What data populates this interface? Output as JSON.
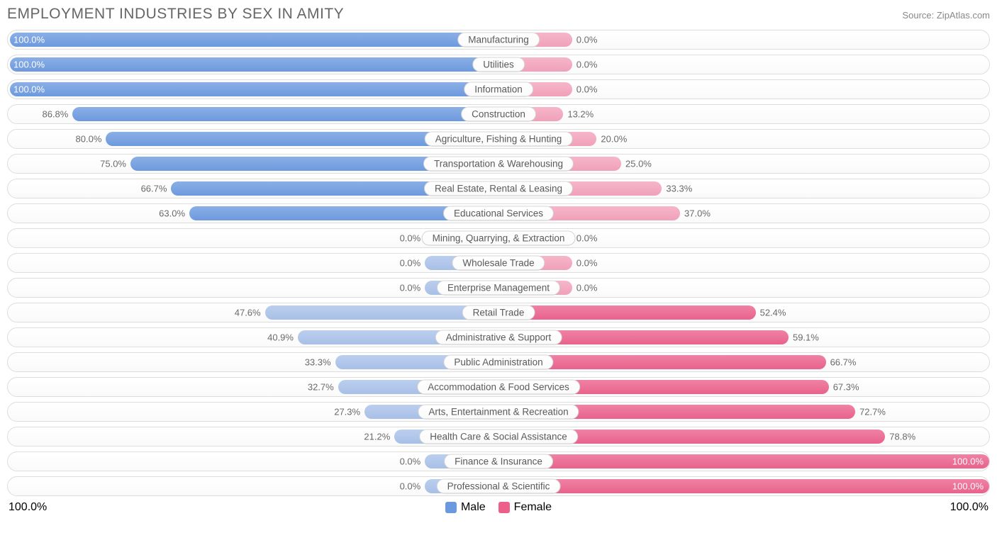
{
  "title": "EMPLOYMENT INDUSTRIES BY SEX IN AMITY",
  "source_label": "Source: ZipAtlas.com",
  "colors": {
    "male_full": "#6a99e0",
    "male_muted": "#a8c1ea",
    "female_full": "#ec5f8b",
    "female_muted": "#f4a1bb",
    "row_border": "#dddddd",
    "text": "#555555",
    "title_color": "#666666",
    "bg": "#ffffff"
  },
  "legend": {
    "male": "Male",
    "female": "Female"
  },
  "axis": {
    "left": "100.0%",
    "right": "100.0%"
  },
  "short_bar_pct": 15,
  "rows": [
    {
      "label": "Manufacturing",
      "male": 100.0,
      "female": 0.0,
      "female_muted": true
    },
    {
      "label": "Utilities",
      "male": 100.0,
      "female": 0.0,
      "female_muted": true
    },
    {
      "label": "Information",
      "male": 100.0,
      "female": 0.0,
      "female_muted": true
    },
    {
      "label": "Construction",
      "male": 86.8,
      "female": 13.2,
      "female_muted": true
    },
    {
      "label": "Agriculture, Fishing & Hunting",
      "male": 80.0,
      "female": 20.0,
      "female_muted": true
    },
    {
      "label": "Transportation & Warehousing",
      "male": 75.0,
      "female": 25.0,
      "female_muted": true
    },
    {
      "label": "Real Estate, Rental & Leasing",
      "male": 66.7,
      "female": 33.3,
      "female_muted": true
    },
    {
      "label": "Educational Services",
      "male": 63.0,
      "female": 37.0,
      "female_muted": true
    },
    {
      "label": "Mining, Quarrying, & Extraction",
      "male": 0.0,
      "female": 0.0,
      "male_muted": true,
      "female_muted": true
    },
    {
      "label": "Wholesale Trade",
      "male": 0.0,
      "female": 0.0,
      "male_muted": true,
      "female_muted": true
    },
    {
      "label": "Enterprise Management",
      "male": 0.0,
      "female": 0.0,
      "male_muted": true,
      "female_muted": true
    },
    {
      "label": "Retail Trade",
      "male": 47.6,
      "female": 52.4,
      "male_muted": true
    },
    {
      "label": "Administrative & Support",
      "male": 40.9,
      "female": 59.1,
      "male_muted": true
    },
    {
      "label": "Public Administration",
      "male": 33.3,
      "female": 66.7,
      "male_muted": true
    },
    {
      "label": "Accommodation & Food Services",
      "male": 32.7,
      "female": 67.3,
      "male_muted": true
    },
    {
      "label": "Arts, Entertainment & Recreation",
      "male": 27.3,
      "female": 72.7,
      "male_muted": true
    },
    {
      "label": "Health Care & Social Assistance",
      "male": 21.2,
      "female": 78.8,
      "male_muted": true
    },
    {
      "label": "Finance & Insurance",
      "male": 0.0,
      "female": 100.0,
      "male_muted": true
    },
    {
      "label": "Professional & Scientific",
      "male": 0.0,
      "female": 100.0,
      "male_muted": true
    }
  ]
}
